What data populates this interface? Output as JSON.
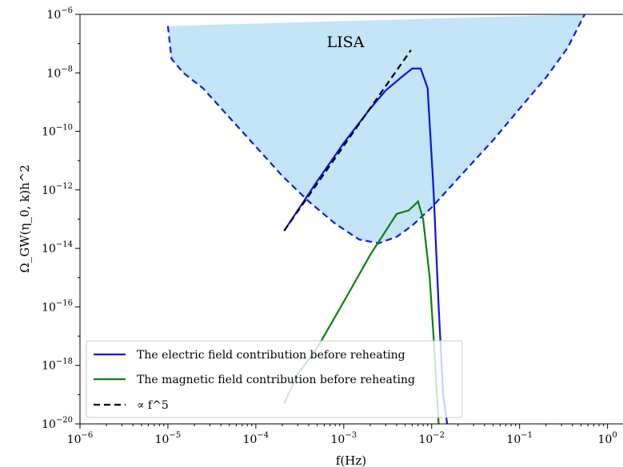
{
  "chart_data": {
    "type": "line",
    "xscale": "log",
    "yscale": "log",
    "xlim": [
      1e-06,
      1.5
    ],
    "ylim": [
      1e-20,
      1e-06
    ],
    "xlabel": "f(Hz)",
    "ylabel": "Ω_GW(η_0, k)h^2",
    "x_ticks": [
      {
        "base": "10",
        "exp": "−6"
      },
      {
        "base": "10",
        "exp": "−5"
      },
      {
        "base": "10",
        "exp": "−4"
      },
      {
        "base": "10",
        "exp": "−3"
      },
      {
        "base": "10",
        "exp": "−2"
      },
      {
        "base": "10",
        "exp": "−1"
      },
      {
        "base": "10",
        "exp": "0"
      }
    ],
    "y_ticks": [
      {
        "base": "10",
        "exp": "−6"
      },
      {
        "base": "10",
        "exp": "−8"
      },
      {
        "base": "10",
        "exp": "−10"
      },
      {
        "base": "10",
        "exp": "−12"
      },
      {
        "base": "10",
        "exp": "−14"
      },
      {
        "base": "10",
        "exp": "−16"
      },
      {
        "base": "10",
        "exp": "−18"
      },
      {
        "base": "10",
        "exp": "−20"
      }
    ],
    "grid": false,
    "legend_position": "lower-left",
    "annotations": [
      {
        "text": "LISA"
      }
    ],
    "sensitivity_region": {
      "name": "LISA",
      "fill_color": "#c4e4f7",
      "edge_color": "#0a1ee6",
      "x": [
        1e-05,
        1.1e-05,
        1.5e-05,
        2.5e-05,
        5e-05,
        0.0001,
        0.0002,
        0.0004,
        0.0008,
        0.0015,
        0.0025,
        0.004,
        0.006,
        0.01,
        0.02,
        0.05,
        0.1,
        0.2,
        0.35,
        0.55
      ],
      "y": [
        4e-07,
        3e-08,
        1e-08,
        3e-09,
        3e-10,
        3e-11,
        3e-12,
        4e-13,
        7e-14,
        2e-14,
        1.5e-14,
        2.5e-14,
        6e-14,
        2.5e-13,
        2.5e-12,
        5e-11,
        6e-10,
        7e-09,
        7e-08,
        1e-06
      ]
    },
    "series": [
      {
        "name": "The electric field contribution before reheating",
        "color": "#0a14e6",
        "dash": "solid",
        "x": [
          0.00021,
          0.0003,
          0.0005,
          0.001,
          0.002,
          0.003,
          0.0045,
          0.006,
          0.0075,
          0.009,
          0.0105,
          0.012,
          0.0135,
          0.015
        ],
        "y": [
          4e-14,
          2e-13,
          2e-12,
          4e-11,
          6e-10,
          2.5e-09,
          7e-09,
          1.4e-08,
          1.4e-08,
          3e-09,
          1e-12,
          1e-16,
          1e-19,
          1e-20
        ]
      },
      {
        "name": "The magnetic field contribution before reheating",
        "color": "#0a820a",
        "dash": "solid",
        "x": [
          0.00021,
          0.0003,
          0.0005,
          0.001,
          0.002,
          0.004,
          0.0055,
          0.007,
          0.008,
          0.0095,
          0.0105,
          0.012
        ],
        "y": [
          5e-20,
          5e-19,
          4e-18,
          1.5e-16,
          6e-15,
          1.5e-13,
          2e-13,
          4e-13,
          1e-13,
          1e-15,
          1e-17,
          1e-20
        ]
      },
      {
        "name": "∝ f^5",
        "color": "#000000",
        "dash": "dashed",
        "x": [
          0.00021,
          0.0058
        ],
        "y": [
          4e-14,
          6e-08
        ]
      }
    ]
  }
}
